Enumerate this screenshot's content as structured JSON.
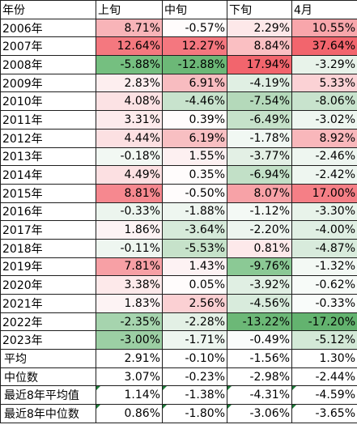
{
  "table": {
    "headers": [
      "年份",
      "上旬",
      "中旬",
      "下旬",
      "4月"
    ],
    "rows": [
      {
        "label": "2006年",
        "values": [
          "8.71%",
          "-0.57%",
          "2.29%",
          "10.55%"
        ],
        "colors": [
          "#f8b4b8",
          "#fffcfc",
          "#fde8e9",
          "#f8a6ab"
        ]
      },
      {
        "label": "2007年",
        "values": [
          "12.64%",
          "12.27%",
          "8.84%",
          "37.64%"
        ],
        "colors": [
          "#f4787f",
          "#f4777f",
          "#fabfc2",
          "#f2656d"
        ]
      },
      {
        "label": "2008年",
        "values": [
          "-5.88%",
          "-12.88%",
          "17.94%",
          "-3.29%"
        ],
        "colors": [
          "#75bf80",
          "#6cb877",
          "#f2656d",
          "#e8f3ea"
        ]
      },
      {
        "label": "2009年",
        "values": [
          "2.83%",
          "6.91%",
          "-4.19%",
          "5.33%"
        ],
        "colors": [
          "#fdeeef",
          "#f8bcc0",
          "#e0efe3",
          "#fbd2d5"
        ]
      },
      {
        "label": "2010年",
        "values": [
          "4.08%",
          "-4.46%",
          "-7.54%",
          "-8.06%"
        ],
        "colors": [
          "#fce2e4",
          "#c8e3cd",
          "#b4d9ba",
          "#c8e3cd"
        ]
      },
      {
        "label": "2011年",
        "values": [
          "3.31%",
          "0.39%",
          "-6.49%",
          "-3.02%"
        ],
        "colors": [
          "#fdebec",
          "#fffcfc",
          "#c6e2ca",
          "#eef6f0"
        ]
      },
      {
        "label": "2012年",
        "values": [
          "4.44%",
          "6.19%",
          "-1.78%",
          "8.92%"
        ],
        "colors": [
          "#fce0e2",
          "#f8bfc2",
          "#f1f8f3",
          "#f9b7bb"
        ]
      },
      {
        "label": "2013年",
        "values": [
          "-0.18%",
          "1.55%",
          "-3.77%",
          "-2.46%"
        ],
        "colors": [
          "#f2f8f3",
          "#fdf0f1",
          "#e3f0e5",
          "#eef6f0"
        ]
      },
      {
        "label": "2014年",
        "values": [
          "4.49%",
          "0.35%",
          "-6.94%",
          "-2.42%"
        ],
        "colors": [
          "#fce0e2",
          "#fffcfc",
          "#c2e0c7",
          "#eef6f0"
        ]
      },
      {
        "label": "2015年",
        "values": [
          "8.81%",
          "-0.50%",
          "8.07%",
          "17.00%"
        ],
        "colors": [
          "#f6888f",
          "#fffcfc",
          "#f7a2a7",
          "#f57f86"
        ]
      },
      {
        "label": "2016年",
        "values": [
          "-0.33%",
          "-1.88%",
          "-1.12%",
          "-3.30%"
        ],
        "colors": [
          "#ecf5ee",
          "#eef6f0",
          "#f4f9f5",
          "#e8f3ea"
        ]
      },
      {
        "label": "2017年",
        "values": [
          "1.86%",
          "-3.64%",
          "-2.20%",
          "-4.00%"
        ],
        "colors": [
          "#fdf3f4",
          "#d6eada",
          "#edf5ef",
          "#e0efe3"
        ]
      },
      {
        "label": "2018年",
        "values": [
          "-0.11%",
          "-5.53%",
          "0.81%",
          "-4.87%"
        ],
        "colors": [
          "#eef6f0",
          "#c6e2ca",
          "#fde9ea",
          "#d8ebdc"
        ]
      },
      {
        "label": "2019年",
        "values": [
          "7.81%",
          "1.43%",
          "-9.76%",
          "-1.32%"
        ],
        "colors": [
          "#f7a0a5",
          "#fdf2f3",
          "#8bc995",
          "#f3f9f4"
        ]
      },
      {
        "label": "2020年",
        "values": [
          "3.38%",
          "0.05%",
          "-3.92%",
          "-0.62%"
        ],
        "colors": [
          "#fde9ea",
          "#fffcfc",
          "#e0efe3",
          "#f7fbf8"
        ]
      },
      {
        "label": "2021年",
        "values": [
          "1.83%",
          "2.56%",
          "-4.56%",
          "-0.33%"
        ],
        "colors": [
          "#fdf3f4",
          "#fbd0d3",
          "#d8ebdc",
          "#f9fcfa"
        ]
      },
      {
        "label": "2022年",
        "values": [
          "-2.35%",
          "-2.28%",
          "-13.22%",
          "-17.20%"
        ],
        "colors": [
          "#a6d4ae",
          "#e3f0e5",
          "#6cb877",
          "#63b36f"
        ]
      },
      {
        "label": "2023年",
        "values": [
          "-3.00%",
          "-1.71%",
          "-0.49%",
          "-5.12%"
        ],
        "colors": [
          "#9ccf a4",
          "#eef6f0",
          "#fafcfb",
          "#d3e9d7"
        ]
      }
    ],
    "summary": [
      {
        "label": "平均",
        "values": [
          "2.91%",
          "-0.10%",
          "-1.56%",
          "1.30%"
        ],
        "flags": [
          false,
          false,
          false,
          false
        ]
      },
      {
        "label": "中位数",
        "values": [
          "3.07%",
          "-0.23%",
          "-2.98%",
          "-2.44%"
        ],
        "flags": [
          false,
          false,
          false,
          false
        ]
      },
      {
        "label": "最近8年平均值",
        "values": [
          "1.14%",
          "-1.38%",
          "-4.31%",
          "-4.59%"
        ],
        "flags": [
          true,
          true,
          true,
          true
        ]
      },
      {
        "label": "最近8年中位数",
        "values": [
          "0.86%",
          "-1.80%",
          "-3.06%",
          "-3.65%"
        ],
        "flags": [
          true,
          true,
          true,
          true
        ]
      }
    ]
  }
}
